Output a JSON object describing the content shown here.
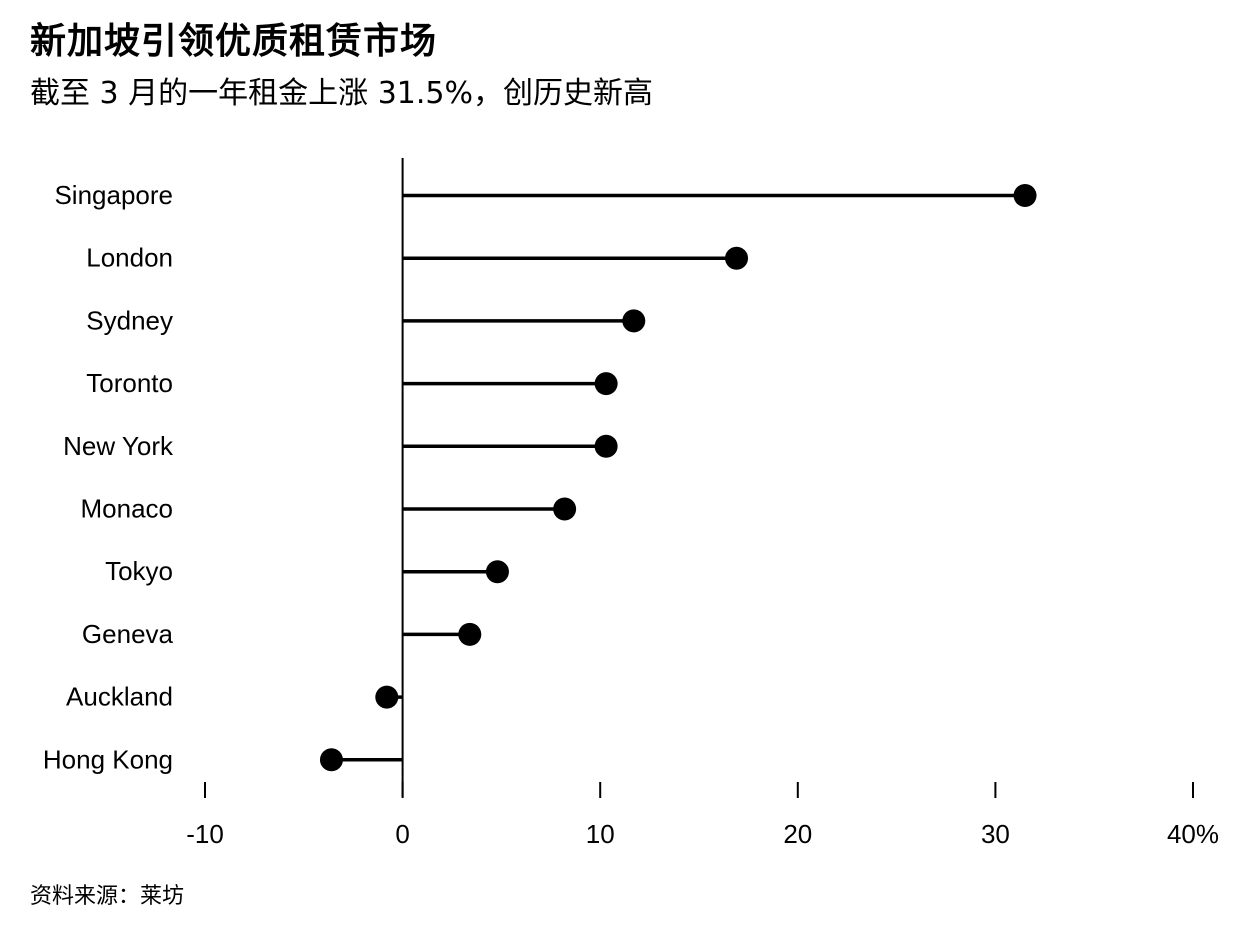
{
  "title": "新加坡引领优质租赁市场",
  "subtitle": "截至 3 月的一年租金上涨 31.5%，创历史新高",
  "source": "资料来源：莱坊",
  "chart_data": {
    "type": "lollipop",
    "orientation": "horizontal",
    "categories": [
      "Singapore",
      "London",
      "Sydney",
      "Toronto",
      "New York",
      "Monaco",
      "Tokyo",
      "Geneva",
      "Auckland",
      "Hong Kong"
    ],
    "values": [
      31.5,
      16.9,
      11.7,
      10.3,
      10.3,
      8.2,
      4.8,
      3.4,
      -0.8,
      -3.6
    ],
    "xlim": [
      -10,
      40
    ],
    "x_ticks": [
      -10,
      0,
      10,
      20,
      30,
      40
    ],
    "x_tick_labels": [
      "-10",
      "0",
      "10",
      "20",
      "30",
      "40%"
    ],
    "grid": false,
    "colors": {
      "marker": "#000000",
      "stem": "#000000"
    }
  }
}
